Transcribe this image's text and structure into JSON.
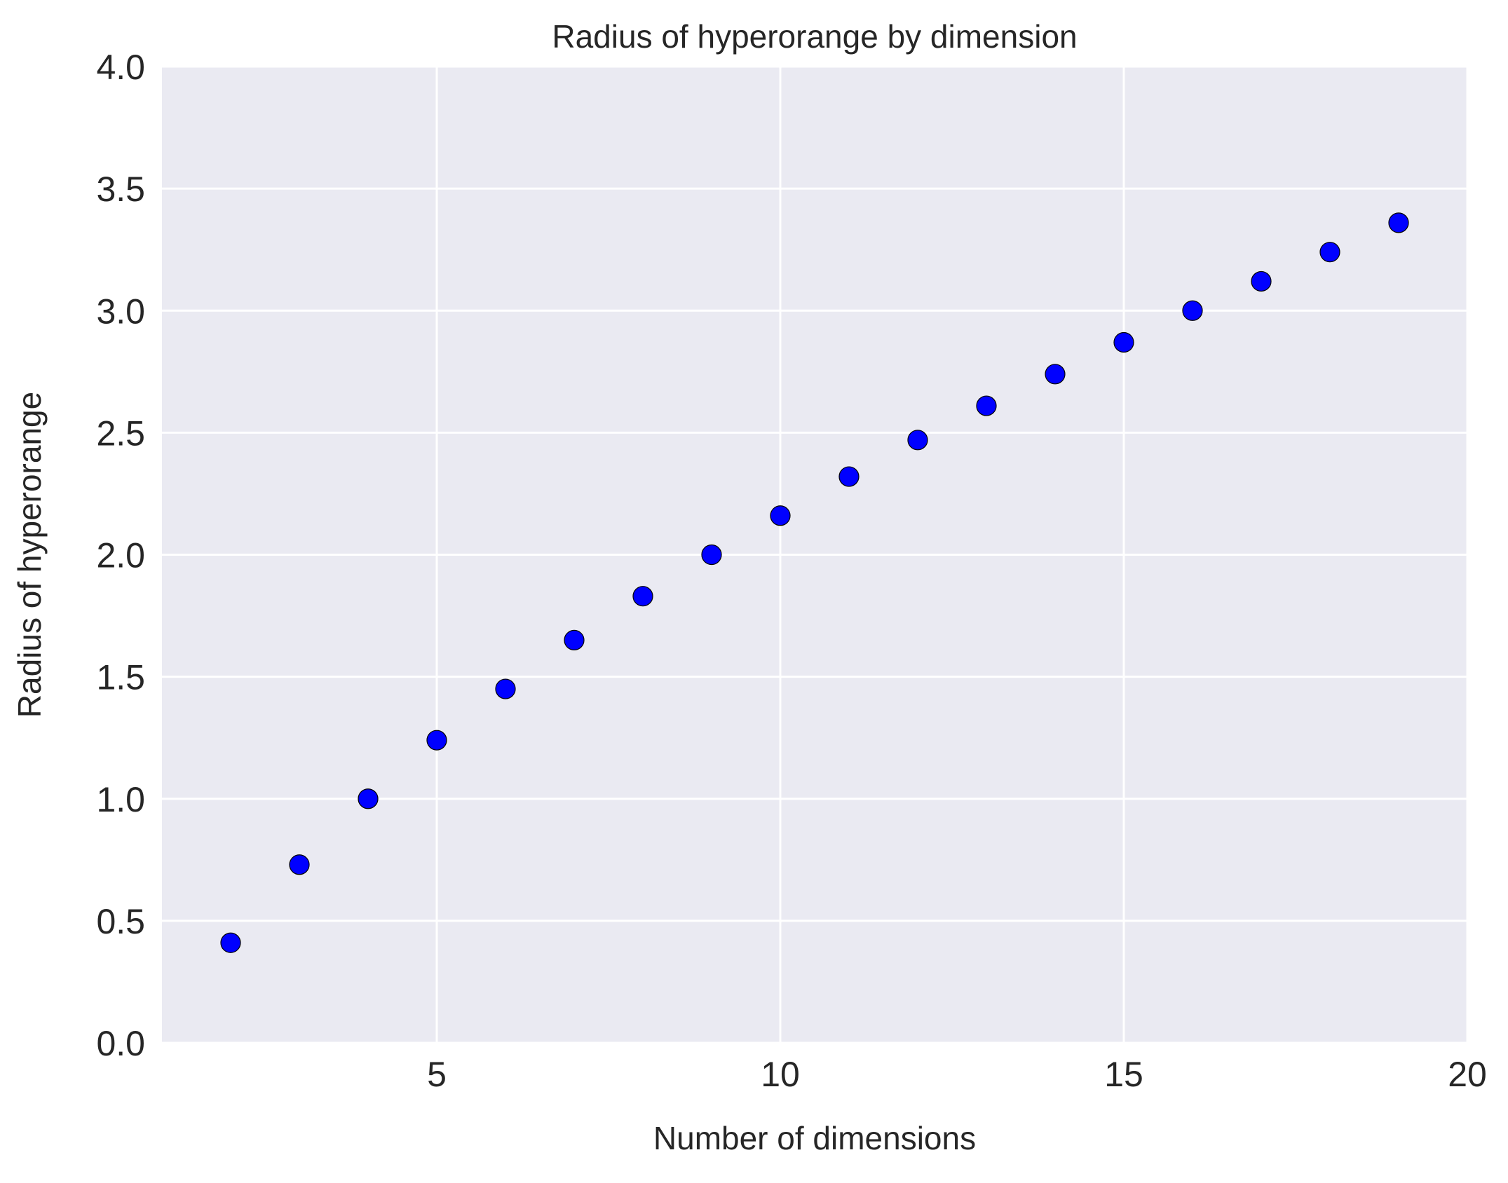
{
  "chart_data": {
    "type": "scatter",
    "title": "Radius of hyperorange by dimension",
    "xlabel": "Number of dimensions",
    "ylabel": "Radius of hyperorange",
    "xlim": [
      1,
      20
    ],
    "ylim": [
      0.0,
      4.0
    ],
    "x_ticks": [
      5,
      10,
      15,
      20
    ],
    "x_tick_labels": [
      "5",
      "10",
      "15",
      "20"
    ],
    "y_ticks": [
      0.0,
      0.5,
      1.0,
      1.5,
      2.0,
      2.5,
      3.0,
      3.5,
      4.0
    ],
    "y_tick_labels": [
      "0.0",
      "0.5",
      "1.0",
      "1.5",
      "2.0",
      "2.5",
      "3.0",
      "3.5",
      "4.0"
    ],
    "grid": true,
    "background_color": "#eaeaf2",
    "grid_color": "#ffffff",
    "marker_color": "#0000ff",
    "marker_edge_color": "#000000",
    "series": [
      {
        "x": [
          2,
          3,
          4,
          5,
          6,
          7,
          8,
          9,
          10,
          11,
          12,
          13,
          14,
          15,
          16,
          17,
          18,
          19
        ],
        "y": [
          0.41,
          0.73,
          1.0,
          1.24,
          1.45,
          1.65,
          1.83,
          2.0,
          2.16,
          2.32,
          2.47,
          2.61,
          2.74,
          2.87,
          3.0,
          3.12,
          3.24,
          3.36
        ]
      }
    ]
  }
}
